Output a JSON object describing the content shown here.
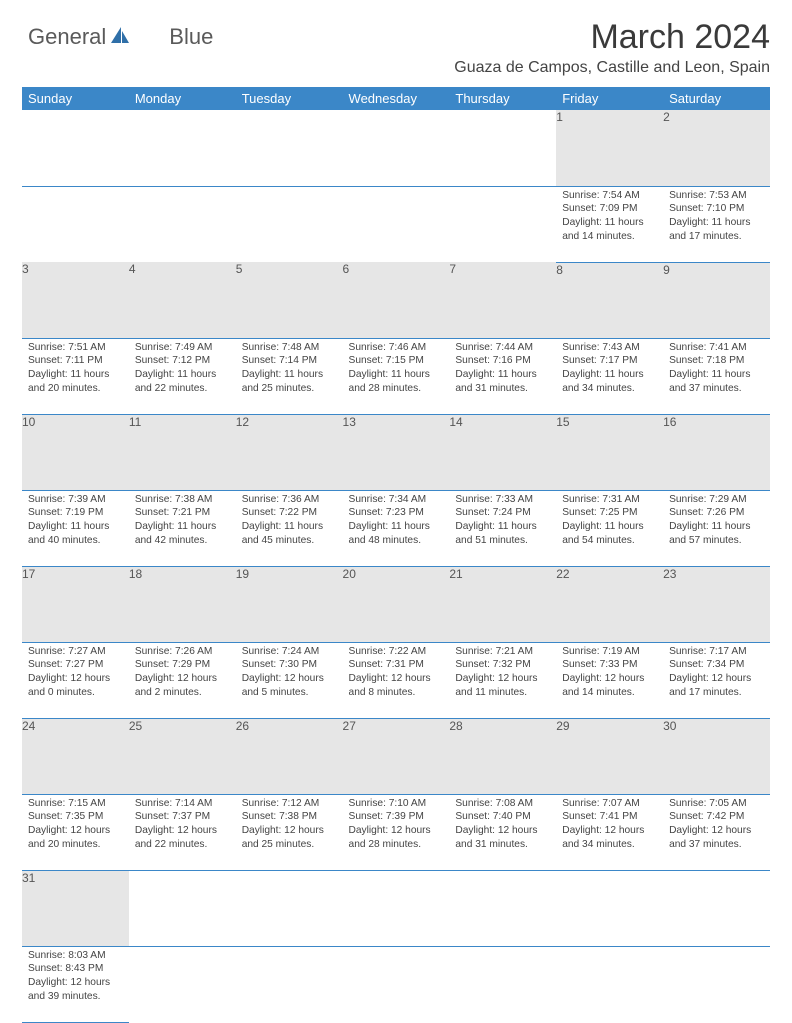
{
  "logo": {
    "text1": "General",
    "text2": "Blue"
  },
  "title": "March 2024",
  "location": "Guaza de Campos, Castille and Leon, Spain",
  "dayHeaders": [
    "Sunday",
    "Monday",
    "Tuesday",
    "Wednesday",
    "Thursday",
    "Friday",
    "Saturday"
  ],
  "rows": [
    {
      "nums": [
        "",
        "",
        "",
        "",
        "",
        "1",
        "2"
      ],
      "cells": [
        null,
        null,
        null,
        null,
        null,
        {
          "sunrise": "7:54 AM",
          "sunset": "7:09 PM",
          "dh": 11,
          "dm": 14
        },
        {
          "sunrise": "7:53 AM",
          "sunset": "7:10 PM",
          "dh": 11,
          "dm": 17
        }
      ]
    },
    {
      "nums": [
        "3",
        "4",
        "5",
        "6",
        "7",
        "8",
        "9"
      ],
      "cells": [
        {
          "sunrise": "7:51 AM",
          "sunset": "7:11 PM",
          "dh": 11,
          "dm": 20
        },
        {
          "sunrise": "7:49 AM",
          "sunset": "7:12 PM",
          "dh": 11,
          "dm": 22
        },
        {
          "sunrise": "7:48 AM",
          "sunset": "7:14 PM",
          "dh": 11,
          "dm": 25
        },
        {
          "sunrise": "7:46 AM",
          "sunset": "7:15 PM",
          "dh": 11,
          "dm": 28
        },
        {
          "sunrise": "7:44 AM",
          "sunset": "7:16 PM",
          "dh": 11,
          "dm": 31
        },
        {
          "sunrise": "7:43 AM",
          "sunset": "7:17 PM",
          "dh": 11,
          "dm": 34
        },
        {
          "sunrise": "7:41 AM",
          "sunset": "7:18 PM",
          "dh": 11,
          "dm": 37
        }
      ]
    },
    {
      "nums": [
        "10",
        "11",
        "12",
        "13",
        "14",
        "15",
        "16"
      ],
      "cells": [
        {
          "sunrise": "7:39 AM",
          "sunset": "7:19 PM",
          "dh": 11,
          "dm": 40
        },
        {
          "sunrise": "7:38 AM",
          "sunset": "7:21 PM",
          "dh": 11,
          "dm": 42
        },
        {
          "sunrise": "7:36 AM",
          "sunset": "7:22 PM",
          "dh": 11,
          "dm": 45
        },
        {
          "sunrise": "7:34 AM",
          "sunset": "7:23 PM",
          "dh": 11,
          "dm": 48
        },
        {
          "sunrise": "7:33 AM",
          "sunset": "7:24 PM",
          "dh": 11,
          "dm": 51
        },
        {
          "sunrise": "7:31 AM",
          "sunset": "7:25 PM",
          "dh": 11,
          "dm": 54
        },
        {
          "sunrise": "7:29 AM",
          "sunset": "7:26 PM",
          "dh": 11,
          "dm": 57
        }
      ]
    },
    {
      "nums": [
        "17",
        "18",
        "19",
        "20",
        "21",
        "22",
        "23"
      ],
      "cells": [
        {
          "sunrise": "7:27 AM",
          "sunset": "7:27 PM",
          "dh": 12,
          "dm": 0
        },
        {
          "sunrise": "7:26 AM",
          "sunset": "7:29 PM",
          "dh": 12,
          "dm": 2
        },
        {
          "sunrise": "7:24 AM",
          "sunset": "7:30 PM",
          "dh": 12,
          "dm": 5
        },
        {
          "sunrise": "7:22 AM",
          "sunset": "7:31 PM",
          "dh": 12,
          "dm": 8
        },
        {
          "sunrise": "7:21 AM",
          "sunset": "7:32 PM",
          "dh": 12,
          "dm": 11
        },
        {
          "sunrise": "7:19 AM",
          "sunset": "7:33 PM",
          "dh": 12,
          "dm": 14
        },
        {
          "sunrise": "7:17 AM",
          "sunset": "7:34 PM",
          "dh": 12,
          "dm": 17
        }
      ]
    },
    {
      "nums": [
        "24",
        "25",
        "26",
        "27",
        "28",
        "29",
        "30"
      ],
      "cells": [
        {
          "sunrise": "7:15 AM",
          "sunset": "7:35 PM",
          "dh": 12,
          "dm": 20
        },
        {
          "sunrise": "7:14 AM",
          "sunset": "7:37 PM",
          "dh": 12,
          "dm": 22
        },
        {
          "sunrise": "7:12 AM",
          "sunset": "7:38 PM",
          "dh": 12,
          "dm": 25
        },
        {
          "sunrise": "7:10 AM",
          "sunset": "7:39 PM",
          "dh": 12,
          "dm": 28
        },
        {
          "sunrise": "7:08 AM",
          "sunset": "7:40 PM",
          "dh": 12,
          "dm": 31
        },
        {
          "sunrise": "7:07 AM",
          "sunset": "7:41 PM",
          "dh": 12,
          "dm": 34
        },
        {
          "sunrise": "7:05 AM",
          "sunset": "7:42 PM",
          "dh": 12,
          "dm": 37
        }
      ]
    },
    {
      "nums": [
        "31",
        "",
        "",
        "",
        "",
        "",
        ""
      ],
      "cells": [
        {
          "sunrise": "8:03 AM",
          "sunset": "8:43 PM",
          "dh": 12,
          "dm": 39
        },
        null,
        null,
        null,
        null,
        null,
        null
      ]
    }
  ],
  "labels": {
    "sunrise": "Sunrise: ",
    "sunset": "Sunset: ",
    "daylight": "Daylight: ",
    "hours": " hours",
    "and": "and ",
    "minutes": " minutes."
  },
  "colors": {
    "headerBg": "#3b87c8",
    "headerText": "#ffffff",
    "dayNumBg": "#e6e6e6",
    "bodyText": "#444444",
    "rowBorder": "#3b87c8",
    "logoBlue": "#2f6fa8"
  }
}
